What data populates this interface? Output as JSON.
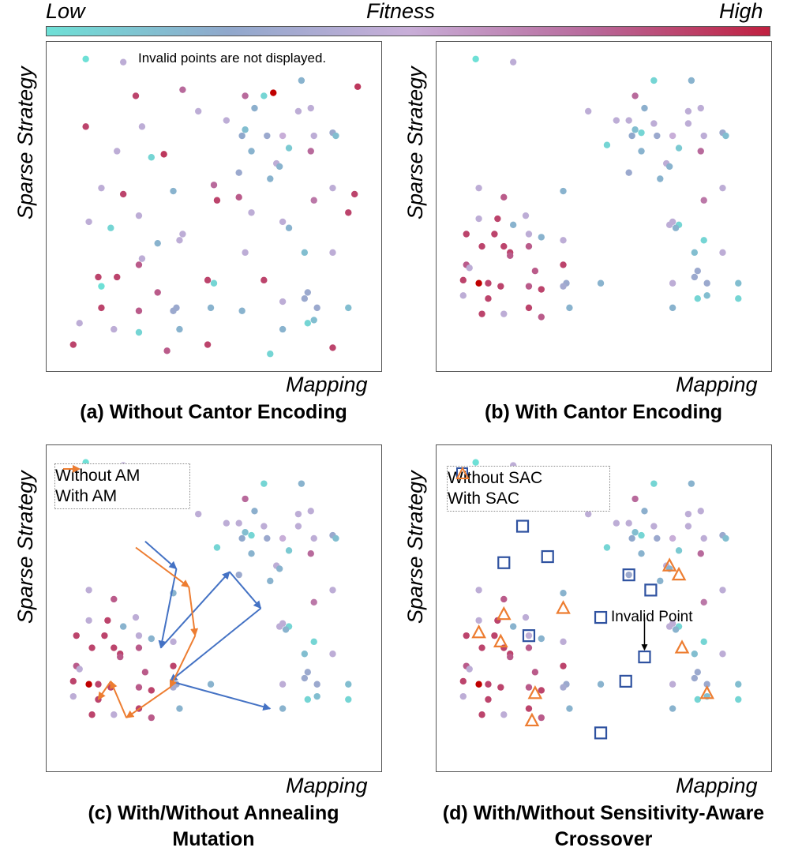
{
  "colorbar": {
    "label_low": "Low",
    "label_title": "Fitness",
    "label_high": "High",
    "stops": [
      "#6ee0d6",
      "#90a8cc",
      "#c8aed8",
      "#b86a9c",
      "#c02040"
    ]
  },
  "chart_data": [
    {
      "type": "scatter",
      "id": "a",
      "title": "(a) Without Cantor Encoding",
      "xlabel": "Mapping",
      "ylabel": "Sparse Strategy",
      "annotation": "Invalid points are not displayed.",
      "xlim": [
        0,
        1
      ],
      "ylim": [
        0,
        1
      ],
      "colorscale": "fitness",
      "points": [
        {
          "x": 0.09,
          "y": 0.98,
          "f": 0.0
        },
        {
          "x": 0.21,
          "y": 0.97,
          "f": 0.45
        },
        {
          "x": 0.78,
          "y": 0.91,
          "f": 0.2
        },
        {
          "x": 0.96,
          "y": 0.89,
          "f": 0.92
        },
        {
          "x": 0.25,
          "y": 0.86,
          "f": 0.88
        },
        {
          "x": 0.4,
          "y": 0.88,
          "f": 0.75
        },
        {
          "x": 0.6,
          "y": 0.86,
          "f": 0.75
        },
        {
          "x": 0.66,
          "y": 0.86,
          "f": 0.05
        },
        {
          "x": 0.69,
          "y": 0.87,
          "f": 1.0
        },
        {
          "x": 0.63,
          "y": 0.82,
          "f": 0.22
        },
        {
          "x": 0.45,
          "y": 0.81,
          "f": 0.45
        },
        {
          "x": 0.77,
          "y": 0.81,
          "f": 0.45
        },
        {
          "x": 0.81,
          "y": 0.82,
          "f": 0.45
        },
        {
          "x": 0.09,
          "y": 0.76,
          "f": 0.88
        },
        {
          "x": 0.27,
          "y": 0.76,
          "f": 0.45
        },
        {
          "x": 0.54,
          "y": 0.78,
          "f": 0.45
        },
        {
          "x": 0.6,
          "y": 0.75,
          "f": 0.15
        },
        {
          "x": 0.59,
          "y": 0.73,
          "f": 0.25
        },
        {
          "x": 0.67,
          "y": 0.73,
          "f": 0.3
        },
        {
          "x": 0.72,
          "y": 0.73,
          "f": 0.5
        },
        {
          "x": 0.88,
          "y": 0.74,
          "f": 0.3
        },
        {
          "x": 0.89,
          "y": 0.73,
          "f": 0.15
        },
        {
          "x": 0.82,
          "y": 0.73,
          "f": 0.45
        },
        {
          "x": 0.19,
          "y": 0.68,
          "f": 0.45
        },
        {
          "x": 0.3,
          "y": 0.66,
          "f": 0.05
        },
        {
          "x": 0.34,
          "y": 0.67,
          "f": 0.92
        },
        {
          "x": 0.62,
          "y": 0.68,
          "f": 0.2
        },
        {
          "x": 0.74,
          "y": 0.69,
          "f": 0.1
        },
        {
          "x": 0.81,
          "y": 0.68,
          "f": 0.75
        },
        {
          "x": 0.7,
          "y": 0.64,
          "f": 0.45
        },
        {
          "x": 0.71,
          "y": 0.63,
          "f": 0.2
        },
        {
          "x": 0.58,
          "y": 0.61,
          "f": 0.3
        },
        {
          "x": 0.68,
          "y": 0.59,
          "f": 0.2
        },
        {
          "x": 0.14,
          "y": 0.56,
          "f": 0.45
        },
        {
          "x": 0.37,
          "y": 0.55,
          "f": 0.2
        },
        {
          "x": 0.5,
          "y": 0.57,
          "f": 0.75
        },
        {
          "x": 0.88,
          "y": 0.56,
          "f": 0.45
        },
        {
          "x": 0.21,
          "y": 0.54,
          "f": 0.88
        },
        {
          "x": 0.58,
          "y": 0.53,
          "f": 0.8
        },
        {
          "x": 0.95,
          "y": 0.54,
          "f": 0.88
        },
        {
          "x": 0.82,
          "y": 0.52,
          "f": 0.7
        },
        {
          "x": 0.1,
          "y": 0.45,
          "f": 0.45
        },
        {
          "x": 0.26,
          "y": 0.47,
          "f": 0.45
        },
        {
          "x": 0.51,
          "y": 0.52,
          "f": 0.88
        },
        {
          "x": 0.62,
          "y": 0.48,
          "f": 0.45
        },
        {
          "x": 0.72,
          "y": 0.45,
          "f": 0.45
        },
        {
          "x": 0.93,
          "y": 0.48,
          "f": 0.88
        },
        {
          "x": 0.17,
          "y": 0.43,
          "f": 0.05
        },
        {
          "x": 0.4,
          "y": 0.41,
          "f": 0.45
        },
        {
          "x": 0.74,
          "y": 0.43,
          "f": 0.2
        },
        {
          "x": 0.32,
          "y": 0.38,
          "f": 0.2
        },
        {
          "x": 0.39,
          "y": 0.39,
          "f": 0.45
        },
        {
          "x": 0.27,
          "y": 0.33,
          "f": 0.45
        },
        {
          "x": 0.6,
          "y": 0.35,
          "f": 0.45
        },
        {
          "x": 0.79,
          "y": 0.35,
          "f": 0.15
        },
        {
          "x": 0.88,
          "y": 0.35,
          "f": 0.45
        },
        {
          "x": 0.26,
          "y": 0.31,
          "f": 0.8
        },
        {
          "x": 0.48,
          "y": 0.26,
          "f": 0.88
        },
        {
          "x": 0.5,
          "y": 0.25,
          "f": 0.05
        },
        {
          "x": 0.66,
          "y": 0.26,
          "f": 0.88
        },
        {
          "x": 0.13,
          "y": 0.27,
          "f": 0.88
        },
        {
          "x": 0.19,
          "y": 0.27,
          "f": 0.88
        },
        {
          "x": 0.14,
          "y": 0.24,
          "f": 0.0
        },
        {
          "x": 0.32,
          "y": 0.22,
          "f": 0.8
        },
        {
          "x": 0.8,
          "y": 0.22,
          "f": 0.3
        },
        {
          "x": 0.79,
          "y": 0.2,
          "f": 0.3
        },
        {
          "x": 0.72,
          "y": 0.19,
          "f": 0.45
        },
        {
          "x": 0.14,
          "y": 0.17,
          "f": 0.88
        },
        {
          "x": 0.26,
          "y": 0.16,
          "f": 0.8
        },
        {
          "x": 0.37,
          "y": 0.16,
          "f": 0.3
        },
        {
          "x": 0.38,
          "y": 0.17,
          "f": 0.3
        },
        {
          "x": 0.49,
          "y": 0.17,
          "f": 0.2
        },
        {
          "x": 0.59,
          "y": 0.16,
          "f": 0.2
        },
        {
          "x": 0.83,
          "y": 0.17,
          "f": 0.3
        },
        {
          "x": 0.93,
          "y": 0.17,
          "f": 0.15
        },
        {
          "x": 0.07,
          "y": 0.12,
          "f": 0.45
        },
        {
          "x": 0.82,
          "y": 0.13,
          "f": 0.15
        },
        {
          "x": 0.8,
          "y": 0.12,
          "f": 0.05
        },
        {
          "x": 0.18,
          "y": 0.1,
          "f": 0.45
        },
        {
          "x": 0.26,
          "y": 0.09,
          "f": 0.05
        },
        {
          "x": 0.39,
          "y": 0.1,
          "f": 0.2
        },
        {
          "x": 0.72,
          "y": 0.1,
          "f": 0.2
        },
        {
          "x": 0.05,
          "y": 0.05,
          "f": 0.88
        },
        {
          "x": 0.35,
          "y": 0.03,
          "f": 0.8
        },
        {
          "x": 0.48,
          "y": 0.05,
          "f": 0.88
        },
        {
          "x": 0.68,
          "y": 0.02,
          "f": 0.05
        },
        {
          "x": 0.88,
          "y": 0.04,
          "f": 0.88
        }
      ]
    },
    {
      "type": "scatter",
      "id": "b",
      "title": "(b) With Cantor Encoding",
      "xlabel": "Mapping",
      "ylabel": "Sparse Strategy",
      "xlim": [
        0,
        1
      ],
      "ylim": [
        0,
        1
      ],
      "colorscale": "fitness",
      "points": [
        {
          "x": 0.09,
          "y": 0.98,
          "f": 0.0
        },
        {
          "x": 0.21,
          "y": 0.97,
          "f": 0.45
        },
        {
          "x": 0.66,
          "y": 0.91,
          "f": 0.05
        },
        {
          "x": 0.78,
          "y": 0.91,
          "f": 0.2
        },
        {
          "x": 0.6,
          "y": 0.86,
          "f": 0.75
        },
        {
          "x": 0.63,
          "y": 0.82,
          "f": 0.22
        },
        {
          "x": 0.45,
          "y": 0.81,
          "f": 0.45
        },
        {
          "x": 0.77,
          "y": 0.81,
          "f": 0.45
        },
        {
          "x": 0.81,
          "y": 0.82,
          "f": 0.45
        },
        {
          "x": 0.58,
          "y": 0.78,
          "f": 0.45
        },
        {
          "x": 0.54,
          "y": 0.78,
          "f": 0.45
        },
        {
          "x": 0.66,
          "y": 0.77,
          "f": 0.45
        },
        {
          "x": 0.77,
          "y": 0.77,
          "f": 0.45
        },
        {
          "x": 0.6,
          "y": 0.75,
          "f": 0.15
        },
        {
          "x": 0.62,
          "y": 0.74,
          "f": 0.05
        },
        {
          "x": 0.59,
          "y": 0.73,
          "f": 0.25
        },
        {
          "x": 0.67,
          "y": 0.73,
          "f": 0.3
        },
        {
          "x": 0.72,
          "y": 0.73,
          "f": 0.5
        },
        {
          "x": 0.82,
          "y": 0.73,
          "f": 0.45
        },
        {
          "x": 0.88,
          "y": 0.74,
          "f": 0.3
        },
        {
          "x": 0.89,
          "y": 0.73,
          "f": 0.15
        },
        {
          "x": 0.51,
          "y": 0.7,
          "f": 0.05
        },
        {
          "x": 0.74,
          "y": 0.69,
          "f": 0.1
        },
        {
          "x": 0.81,
          "y": 0.68,
          "f": 0.75
        },
        {
          "x": 0.62,
          "y": 0.68,
          "f": 0.2
        },
        {
          "x": 0.7,
          "y": 0.64,
          "f": 0.45
        },
        {
          "x": 0.71,
          "y": 0.63,
          "f": 0.2
        },
        {
          "x": 0.58,
          "y": 0.61,
          "f": 0.3
        },
        {
          "x": 0.68,
          "y": 0.59,
          "f": 0.2
        },
        {
          "x": 0.1,
          "y": 0.56,
          "f": 0.45
        },
        {
          "x": 0.88,
          "y": 0.56,
          "f": 0.45
        },
        {
          "x": 0.37,
          "y": 0.55,
          "f": 0.2
        },
        {
          "x": 0.18,
          "y": 0.53,
          "f": 0.8
        },
        {
          "x": 0.82,
          "y": 0.52,
          "f": 0.7
        },
        {
          "x": 0.1,
          "y": 0.46,
          "f": 0.45
        },
        {
          "x": 0.16,
          "y": 0.46,
          "f": 0.88
        },
        {
          "x": 0.25,
          "y": 0.47,
          "f": 0.45
        },
        {
          "x": 0.21,
          "y": 0.44,
          "f": 0.2
        },
        {
          "x": 0.72,
          "y": 0.45,
          "f": 0.45
        },
        {
          "x": 0.71,
          "y": 0.44,
          "f": 0.45
        },
        {
          "x": 0.74,
          "y": 0.44,
          "f": 0.05
        },
        {
          "x": 0.73,
          "y": 0.43,
          "f": 0.2
        },
        {
          "x": 0.06,
          "y": 0.41,
          "f": 0.88
        },
        {
          "x": 0.15,
          "y": 0.41,
          "f": 0.88
        },
        {
          "x": 0.26,
          "y": 0.41,
          "f": 0.45
        },
        {
          "x": 0.3,
          "y": 0.4,
          "f": 0.2
        },
        {
          "x": 0.37,
          "y": 0.39,
          "f": 0.45
        },
        {
          "x": 0.82,
          "y": 0.39,
          "f": 0.05
        },
        {
          "x": 0.11,
          "y": 0.37,
          "f": 0.88
        },
        {
          "x": 0.18,
          "y": 0.37,
          "f": 0.88
        },
        {
          "x": 0.26,
          "y": 0.37,
          "f": 0.8
        },
        {
          "x": 0.2,
          "y": 0.35,
          "f": 0.88
        },
        {
          "x": 0.79,
          "y": 0.35,
          "f": 0.15
        },
        {
          "x": 0.88,
          "y": 0.35,
          "f": 0.45
        },
        {
          "x": 0.2,
          "y": 0.34,
          "f": 0.8
        },
        {
          "x": 0.06,
          "y": 0.31,
          "f": 0.8
        },
        {
          "x": 0.07,
          "y": 0.3,
          "f": 0.45
        },
        {
          "x": 0.37,
          "y": 0.31,
          "f": 0.88
        },
        {
          "x": 0.28,
          "y": 0.29,
          "f": 0.8
        },
        {
          "x": 0.8,
          "y": 0.29,
          "f": 0.3
        },
        {
          "x": 0.79,
          "y": 0.27,
          "f": 0.3
        },
        {
          "x": 0.72,
          "y": 0.25,
          "f": 0.45
        },
        {
          "x": 0.05,
          "y": 0.26,
          "f": 0.88
        },
        {
          "x": 0.1,
          "y": 0.25,
          "f": 1.0
        },
        {
          "x": 0.13,
          "y": 0.25,
          "f": 0.88
        },
        {
          "x": 0.17,
          "y": 0.24,
          "f": 0.88
        },
        {
          "x": 0.26,
          "y": 0.24,
          "f": 0.8
        },
        {
          "x": 0.3,
          "y": 0.23,
          "f": 0.88
        },
        {
          "x": 0.38,
          "y": 0.25,
          "f": 0.3
        },
        {
          "x": 0.37,
          "y": 0.24,
          "f": 0.35
        },
        {
          "x": 0.49,
          "y": 0.25,
          "f": 0.2
        },
        {
          "x": 0.83,
          "y": 0.25,
          "f": 0.3
        },
        {
          "x": 0.93,
          "y": 0.25,
          "f": 0.15
        },
        {
          "x": 0.05,
          "y": 0.21,
          "f": 0.45
        },
        {
          "x": 0.13,
          "y": 0.2,
          "f": 0.88
        },
        {
          "x": 0.83,
          "y": 0.21,
          "f": 0.15
        },
        {
          "x": 0.8,
          "y": 0.2,
          "f": 0.05
        },
        {
          "x": 0.93,
          "y": 0.2,
          "f": 0.05
        },
        {
          "x": 0.26,
          "y": 0.17,
          "f": 0.88
        },
        {
          "x": 0.39,
          "y": 0.17,
          "f": 0.2
        },
        {
          "x": 0.72,
          "y": 0.17,
          "f": 0.2
        },
        {
          "x": 0.11,
          "y": 0.15,
          "f": 0.88
        },
        {
          "x": 0.18,
          "y": 0.15,
          "f": 0.45
        },
        {
          "x": 0.3,
          "y": 0.14,
          "f": 0.8
        }
      ]
    },
    {
      "type": "scatter",
      "id": "c",
      "title": "(c) With/Without Annealing Mutation",
      "title_lines": [
        "(c) With/Without Annealing",
        "Mutation"
      ],
      "xlabel": "Mapping",
      "ylabel": "Sparse Strategy",
      "xlim": [
        0,
        1
      ],
      "ylim": [
        0,
        1
      ],
      "colorscale": "fitness",
      "legend": {
        "position": "top-left",
        "entries": [
          {
            "label": "Without AM",
            "marker": "arrow",
            "color": "#4472c4"
          },
          {
            "label": "With AM",
            "marker": "arrow",
            "color": "#ed7d31"
          }
        ]
      },
      "paths": [
        {
          "name": "Without AM",
          "color": "#4472c4",
          "points": [
            [
              0.28,
              0.72
            ],
            [
              0.38,
              0.63
            ],
            [
              0.33,
              0.37
            ],
            [
              0.55,
              0.62
            ],
            [
              0.65,
              0.5
            ],
            [
              0.36,
              0.26
            ],
            [
              0.68,
              0.17
            ]
          ]
        },
        {
          "name": "With AM",
          "color": "#ed7d31",
          "points": [
            [
              0.25,
              0.7
            ],
            [
              0.42,
              0.57
            ],
            [
              0.44,
              0.41
            ],
            [
              0.36,
              0.24
            ],
            [
              0.22,
              0.14
            ],
            [
              0.17,
              0.26
            ],
            [
              0.13,
              0.2
            ]
          ]
        }
      ],
      "points_ref": "b"
    },
    {
      "type": "scatter",
      "id": "d",
      "title": "(d) With/Without Sensitivity-Aware Crossover",
      "title_lines": [
        "(d) With/Without Sensitivity-Aware",
        "Crossover"
      ],
      "xlabel": "Mapping",
      "ylabel": "Sparse Strategy",
      "annotation": "Invalid Point",
      "xlim": [
        0,
        1
      ],
      "ylim": [
        0,
        1
      ],
      "colorscale": "fitness",
      "legend": {
        "position": "top-left",
        "entries": [
          {
            "label": "Without SAC",
            "marker": "square",
            "color": "#2f52a0"
          },
          {
            "label": "With SAC",
            "marker": "triangle",
            "color": "#ed7d31"
          }
        ]
      },
      "markers_without_sac": [
        [
          0.24,
          0.77
        ],
        [
          0.18,
          0.65
        ],
        [
          0.32,
          0.67
        ],
        [
          0.58,
          0.61
        ],
        [
          0.65,
          0.56
        ],
        [
          0.49,
          0.47
        ],
        [
          0.26,
          0.41
        ],
        [
          0.63,
          0.34
        ],
        [
          0.57,
          0.26
        ],
        [
          0.49,
          0.09
        ]
      ],
      "markers_with_sac": [
        [
          0.71,
          0.64
        ],
        [
          0.74,
          0.61
        ],
        [
          0.18,
          0.48
        ],
        [
          0.37,
          0.5
        ],
        [
          0.1,
          0.42
        ],
        [
          0.17,
          0.39
        ],
        [
          0.75,
          0.37
        ],
        [
          0.28,
          0.22
        ],
        [
          0.83,
          0.22
        ],
        [
          0.27,
          0.13
        ]
      ],
      "invalid_point": [
        0.63,
        0.34
      ],
      "points_ref": "b"
    }
  ]
}
